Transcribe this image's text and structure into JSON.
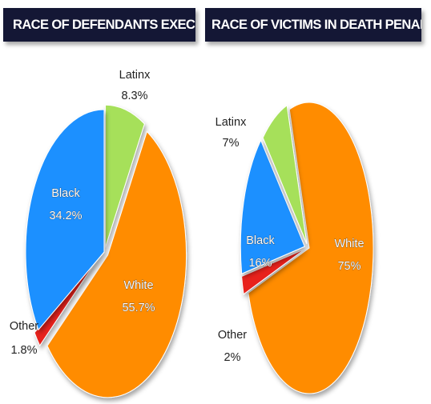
{
  "chart_data": [
    {
      "type": "pie",
      "title": "RACE OF DEFENDANTS EXECUTED",
      "slices": [
        {
          "label": "Latinx",
          "value_label": "8.3%",
          "value": 8.3,
          "color": "#a6e05a",
          "exploded": true
        },
        {
          "label": "White",
          "value_label": "55.7%",
          "value": 55.7,
          "color": "#ff8c00",
          "exploded": true
        },
        {
          "label": "Other",
          "value_label": "1.8%",
          "value": 1.8,
          "color": "#e8211c",
          "exploded": true
        },
        {
          "label": "Black",
          "value_label": "34.2%",
          "value": 34.2,
          "color": "#1e90ff",
          "exploded": false
        }
      ]
    },
    {
      "type": "pie",
      "title": "RACE OF VICTIMS IN DEATH PENALTY CASES",
      "slices": [
        {
          "label": "White",
          "value_label": "75%",
          "value": 75,
          "color": "#ff8c00",
          "exploded": false
        },
        {
          "label": "Other",
          "value_label": "2%",
          "value": 2,
          "color": "#e8211c",
          "exploded": true
        },
        {
          "label": "Black",
          "value_label": "16%",
          "value": 16,
          "color": "#1e90ff",
          "exploded": true
        },
        {
          "label": "Latinx",
          "value_label": "7%",
          "value": 7,
          "color": "#a6e05a",
          "exploded": true
        }
      ]
    }
  ]
}
